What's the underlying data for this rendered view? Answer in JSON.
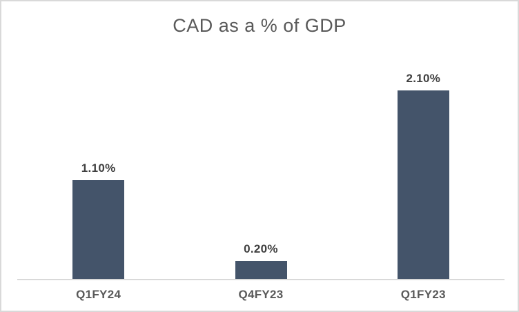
{
  "chart_data": {
    "type": "bar",
    "title": "CAD as a % of GDP",
    "categories": [
      "Q1FY24",
      "Q4FY23",
      "Q1FY23"
    ],
    "values": [
      1.1,
      0.2,
      2.1
    ],
    "data_labels": [
      "1.10%",
      "0.20%",
      "2.10%"
    ],
    "xlabel": "",
    "ylabel": "",
    "ylim": [
      0,
      2.2
    ],
    "grid": false,
    "legend": "none",
    "colors": {
      "bar_fill": "#44546A",
      "title_text": "#595959",
      "data_label_text": "#404040",
      "axis_label_text": "#595959",
      "axis_line": "#D9D9D9",
      "background": "#FFFFFF",
      "frame_border": "#D9D9D9"
    }
  }
}
